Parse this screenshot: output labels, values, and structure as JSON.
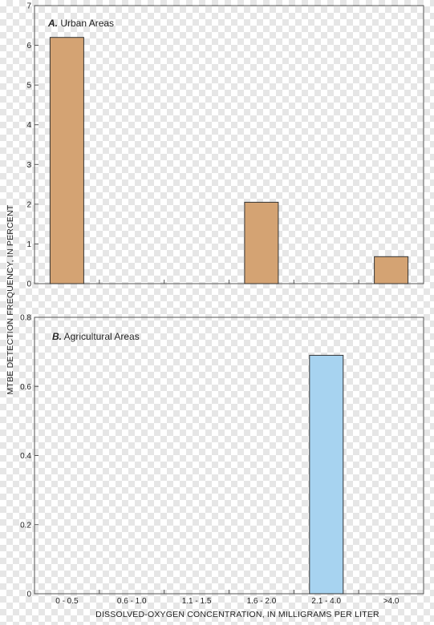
{
  "chart_data": [
    {
      "type": "bar",
      "panel_letter": "A.",
      "title": "Urban Areas",
      "categories": [
        "0 - 0.5",
        "0.6 - 1.0",
        "1.1 - 1.5",
        "1.6 - 2.0",
        "2.1 - 4.0",
        ">4.0"
      ],
      "values": [
        6.2,
        0,
        0,
        2.05,
        0,
        0.68
      ],
      "ylim": [
        0,
        7
      ],
      "yticks": [
        "0",
        "1",
        "2",
        "3",
        "4",
        "5",
        "6",
        "7"
      ],
      "bar_color": "#d4a373",
      "grid": false
    },
    {
      "type": "bar",
      "panel_letter": "B.",
      "title": "Agricultural Areas",
      "categories": [
        "0 - 0.5",
        "0.6 - 1.0",
        "1.1 - 1.5",
        "1.6 - 2.0",
        "2.1 - 4.0",
        ">4.0"
      ],
      "values": [
        0,
        0,
        0,
        0,
        0.69,
        0
      ],
      "ylim": [
        0,
        0.8
      ],
      "yticks": [
        "0",
        "0.2",
        "0.4",
        "0.6",
        "0.8"
      ],
      "bar_color": "#a7d3f0",
      "grid": false
    }
  ],
  "ylabel": "MTBE DETECTION FREQUENCY, IN PERCENT",
  "xlabel": "DISSOLVED-OXYGEN CONCENTRATION, IN MILLIGRAMS PER LITER",
  "xtick_labels": [
    "0 - 0.5",
    "0.6 - 1.0",
    "1.1 - 1.5",
    "1.6 - 2.0",
    "2.1 - 4.0",
    ">4.0"
  ]
}
